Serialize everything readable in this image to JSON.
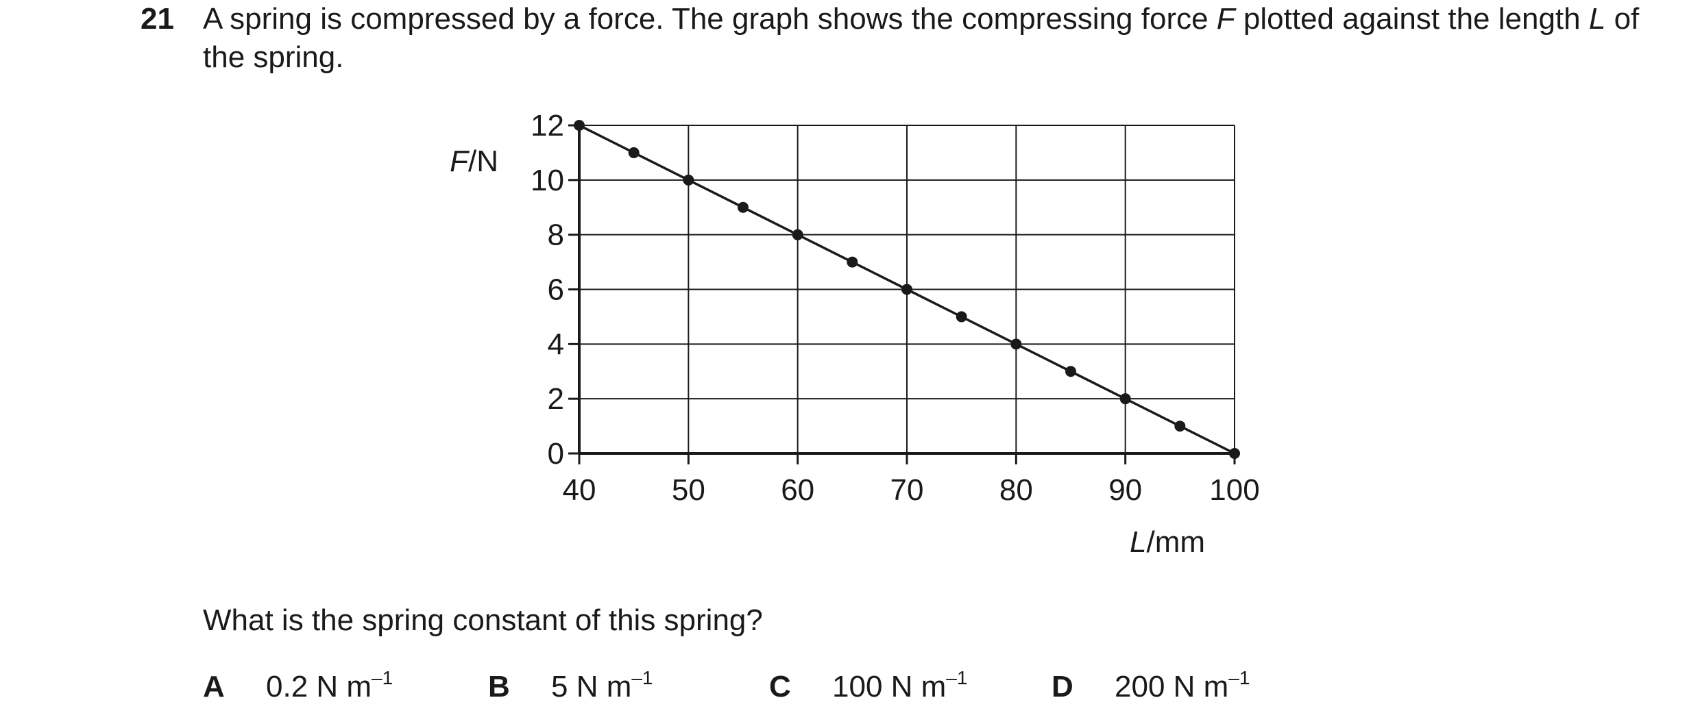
{
  "question": {
    "number": "21",
    "stem_part1": "A spring is compressed by a force. The graph shows the compressing force ",
    "stem_var_F": "F",
    "stem_part2": " plotted against the length ",
    "stem_var_L": "L",
    "stem_part3": " of the spring.",
    "prompt": "What is the spring constant of this spring?"
  },
  "options": [
    {
      "letter": "A",
      "value": "0.2 N m",
      "exponent": "–1"
    },
    {
      "letter": "B",
      "value": "5 N m",
      "exponent": "–1"
    },
    {
      "letter": "C",
      "value": "100 N m",
      "exponent": "–1"
    },
    {
      "letter": "D",
      "value": "200 N m",
      "exponent": "–1"
    }
  ],
  "chart_data": {
    "type": "line",
    "x": [
      40,
      45,
      50,
      55,
      60,
      65,
      70,
      75,
      80,
      85,
      90,
      95,
      100
    ],
    "series": [
      {
        "values": [
          12,
          11,
          10,
          9,
          8,
          7,
          6,
          5,
          4,
          3,
          2,
          1,
          0
        ]
      }
    ],
    "xlabel_var": "L",
    "xlabel_unit": "mm",
    "ylabel_var": "F",
    "ylabel_unit": "N",
    "xlim": [
      40,
      100
    ],
    "ylim": [
      0,
      12
    ],
    "xticks": [
      40,
      50,
      60,
      70,
      80,
      90,
      100
    ],
    "yticks": [
      0,
      2,
      4,
      6,
      8,
      10,
      12
    ],
    "grid": true,
    "markers": true,
    "line_color": "#1a1a1a"
  }
}
